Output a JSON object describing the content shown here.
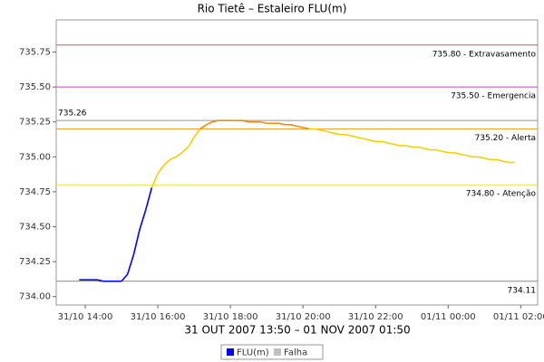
{
  "chart_data": {
    "type": "line",
    "title": "Rio Tietê – Estaleiro FLU(m)",
    "x_label": "31 OUT 2007 13:50 – 01 NOV 2007 01:50",
    "xlim": [
      "2007-10-31T13:12",
      "2007-11-01T02:28"
    ],
    "xticks": [
      {
        "value": "2007-10-31T14:00",
        "label": "31/10 14:00"
      },
      {
        "value": "2007-10-31T16:00",
        "label": "31/10 16:00"
      },
      {
        "value": "2007-10-31T18:00",
        "label": "31/10 18:00"
      },
      {
        "value": "2007-10-31T20:00",
        "label": "31/10 20:00"
      },
      {
        "value": "2007-10-31T22:00",
        "label": "31/10 22:00"
      },
      {
        "value": "2007-11-01T00:00",
        "label": "01/11 00:00"
      },
      {
        "value": "2007-11-01T02:00",
        "label": "01/11 02:00"
      }
    ],
    "ylim": [
      733.94,
      735.98
    ],
    "yticks": [
      {
        "value": 734.0,
        "label": "734.00"
      },
      {
        "value": 734.25,
        "label": "734.25"
      },
      {
        "value": 734.5,
        "label": "734.50"
      },
      {
        "value": 734.75,
        "label": "734.75"
      },
      {
        "value": 735.0,
        "label": "735.00"
      },
      {
        "value": 735.25,
        "label": "735.25"
      },
      {
        "value": 735.5,
        "label": "735.50"
      },
      {
        "value": 735.75,
        "label": "735.75"
      }
    ],
    "thresholds": [
      {
        "value": 735.8,
        "label": "735.80 - Extravasamento",
        "color": "#d9534f",
        "label_side": "right"
      },
      {
        "value": 735.5,
        "label": "735.50 - Emergencia",
        "color": "#cc44cc",
        "label_side": "right"
      },
      {
        "value": 735.26,
        "label": "735.26",
        "color": "#999999",
        "label_side": "left"
      },
      {
        "value": 735.2,
        "label": "735.20 - Alerta",
        "color": "#f0a030",
        "label_side": "right"
      },
      {
        "value": 734.8,
        "label": "734.80 - Atenção",
        "color": "#f0e040",
        "label_side": "right"
      },
      {
        "value": 734.11,
        "label": "734.11",
        "color": "#888888",
        "label_side": "right"
      }
    ],
    "level_colors": [
      {
        "above": 735.2,
        "color": "#f08c00"
      },
      {
        "above": 734.8,
        "color": "#f5d000"
      }
    ],
    "x": [
      "2007-10-31T13:50",
      "2007-10-31T14:00",
      "2007-10-31T14:10",
      "2007-10-31T14:20",
      "2007-10-31T14:30",
      "2007-10-31T14:40",
      "2007-10-31T14:50",
      "2007-10-31T15:00",
      "2007-10-31T15:10",
      "2007-10-31T15:20",
      "2007-10-31T15:30",
      "2007-10-31T15:40",
      "2007-10-31T15:50",
      "2007-10-31T16:00",
      "2007-10-31T16:10",
      "2007-10-31T16:20",
      "2007-10-31T16:30",
      "2007-10-31T16:40",
      "2007-10-31T16:50",
      "2007-10-31T17:00",
      "2007-10-31T17:10",
      "2007-10-31T17:20",
      "2007-10-31T17:30",
      "2007-10-31T17:40",
      "2007-10-31T17:50",
      "2007-10-31T18:00",
      "2007-10-31T18:10",
      "2007-10-31T18:20",
      "2007-10-31T18:30",
      "2007-10-31T18:40",
      "2007-10-31T18:50",
      "2007-10-31T19:00",
      "2007-10-31T19:10",
      "2007-10-31T19:20",
      "2007-10-31T19:30",
      "2007-10-31T19:40",
      "2007-10-31T19:50",
      "2007-10-31T20:00",
      "2007-10-31T20:10",
      "2007-10-31T20:20",
      "2007-10-31T20:30",
      "2007-10-31T20:40",
      "2007-10-31T20:50",
      "2007-10-31T21:00",
      "2007-10-31T21:10",
      "2007-10-31T21:20",
      "2007-10-31T21:30",
      "2007-10-31T21:40",
      "2007-10-31T21:50",
      "2007-10-31T22:00",
      "2007-10-31T22:10",
      "2007-10-31T22:20",
      "2007-10-31T22:30",
      "2007-10-31T22:40",
      "2007-10-31T22:50",
      "2007-10-31T23:00",
      "2007-10-31T23:10",
      "2007-10-31T23:20",
      "2007-10-31T23:30",
      "2007-10-31T23:40",
      "2007-10-31T23:50",
      "2007-11-01T00:00",
      "2007-11-01T00:10",
      "2007-11-01T00:20",
      "2007-11-01T00:30",
      "2007-11-01T00:40",
      "2007-11-01T00:50",
      "2007-11-01T01:00",
      "2007-11-01T01:10",
      "2007-11-01T01:20",
      "2007-11-01T01:30",
      "2007-11-01T01:40",
      "2007-11-01T01:50"
    ],
    "series": [
      {
        "name": "FLU(m)",
        "color": "#0000ff",
        "values": [
          734.12,
          734.12,
          734.12,
          734.12,
          734.11,
          734.11,
          734.11,
          734.11,
          734.16,
          734.3,
          734.48,
          734.62,
          734.78,
          734.88,
          734.94,
          734.98,
          735.0,
          735.03,
          735.07,
          735.14,
          735.2,
          735.23,
          735.25,
          735.26,
          735.26,
          735.26,
          735.26,
          735.26,
          735.25,
          735.25,
          735.25,
          735.24,
          735.24,
          735.24,
          735.23,
          735.23,
          735.22,
          735.21,
          735.2,
          735.2,
          735.19,
          735.18,
          735.17,
          735.16,
          735.16,
          735.15,
          735.14,
          735.13,
          735.12,
          735.11,
          735.11,
          735.1,
          735.09,
          735.08,
          735.08,
          735.07,
          735.07,
          735.06,
          735.05,
          735.05,
          735.04,
          735.03,
          735.03,
          735.02,
          735.01,
          735.0,
          735.0,
          734.99,
          734.98,
          734.98,
          734.97,
          734.96,
          734.96
        ]
      }
    ],
    "legend": [
      {
        "name": "FLU(m)",
        "color": "#0000ff"
      },
      {
        "name": "Falha",
        "color": "#c0c0c0"
      }
    ]
  }
}
